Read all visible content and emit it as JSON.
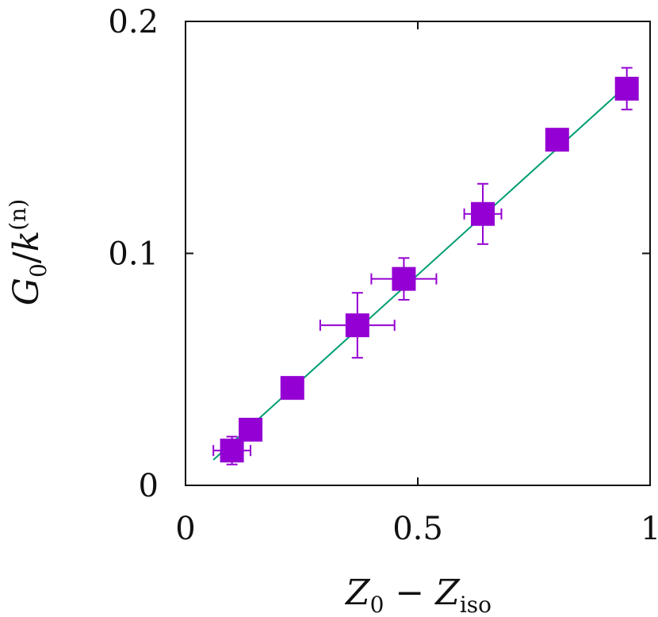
{
  "chart_data": {
    "type": "scatter",
    "title": "",
    "xlabel": {
      "main": "Z",
      "sub0": "0",
      "op": " − ",
      "main2": "Z",
      "sub2": "iso"
    },
    "ylabel": {
      "main": "G",
      "sub0": "0",
      "slash": "/",
      "k": "k",
      "sup": "(n)"
    },
    "xlim": [
      0,
      1
    ],
    "ylim": [
      0,
      0.2
    ],
    "x_ticks": [
      0,
      0.5,
      1
    ],
    "y_ticks": [
      0,
      0.1,
      0.2
    ],
    "x_tick_labels": [
      "0",
      "0.5",
      "1"
    ],
    "y_tick_labels": [
      "0",
      "0.1",
      "0.2"
    ],
    "grid": false,
    "marker_color": "#9400d3",
    "fit_color": "#009e73",
    "series": [
      {
        "x": [
          0.1,
          0.14,
          0.23,
          0.37,
          0.47,
          0.64,
          0.8,
          0.95
        ],
        "y": [
          0.015,
          0.024,
          0.042,
          0.069,
          0.089,
          0.117,
          0.149,
          0.171
        ],
        "xerr": [
          0.04,
          0.0,
          0.0,
          0.08,
          0.07,
          0.04,
          0.0,
          0.0
        ],
        "yerr": [
          0.006,
          0.0,
          0.0,
          0.014,
          0.009,
          0.013,
          0.0,
          0.009
        ]
      }
    ],
    "fit_line": {
      "x": [
        0.06,
        0.97
      ],
      "y": [
        0.011,
        0.176
      ]
    }
  }
}
